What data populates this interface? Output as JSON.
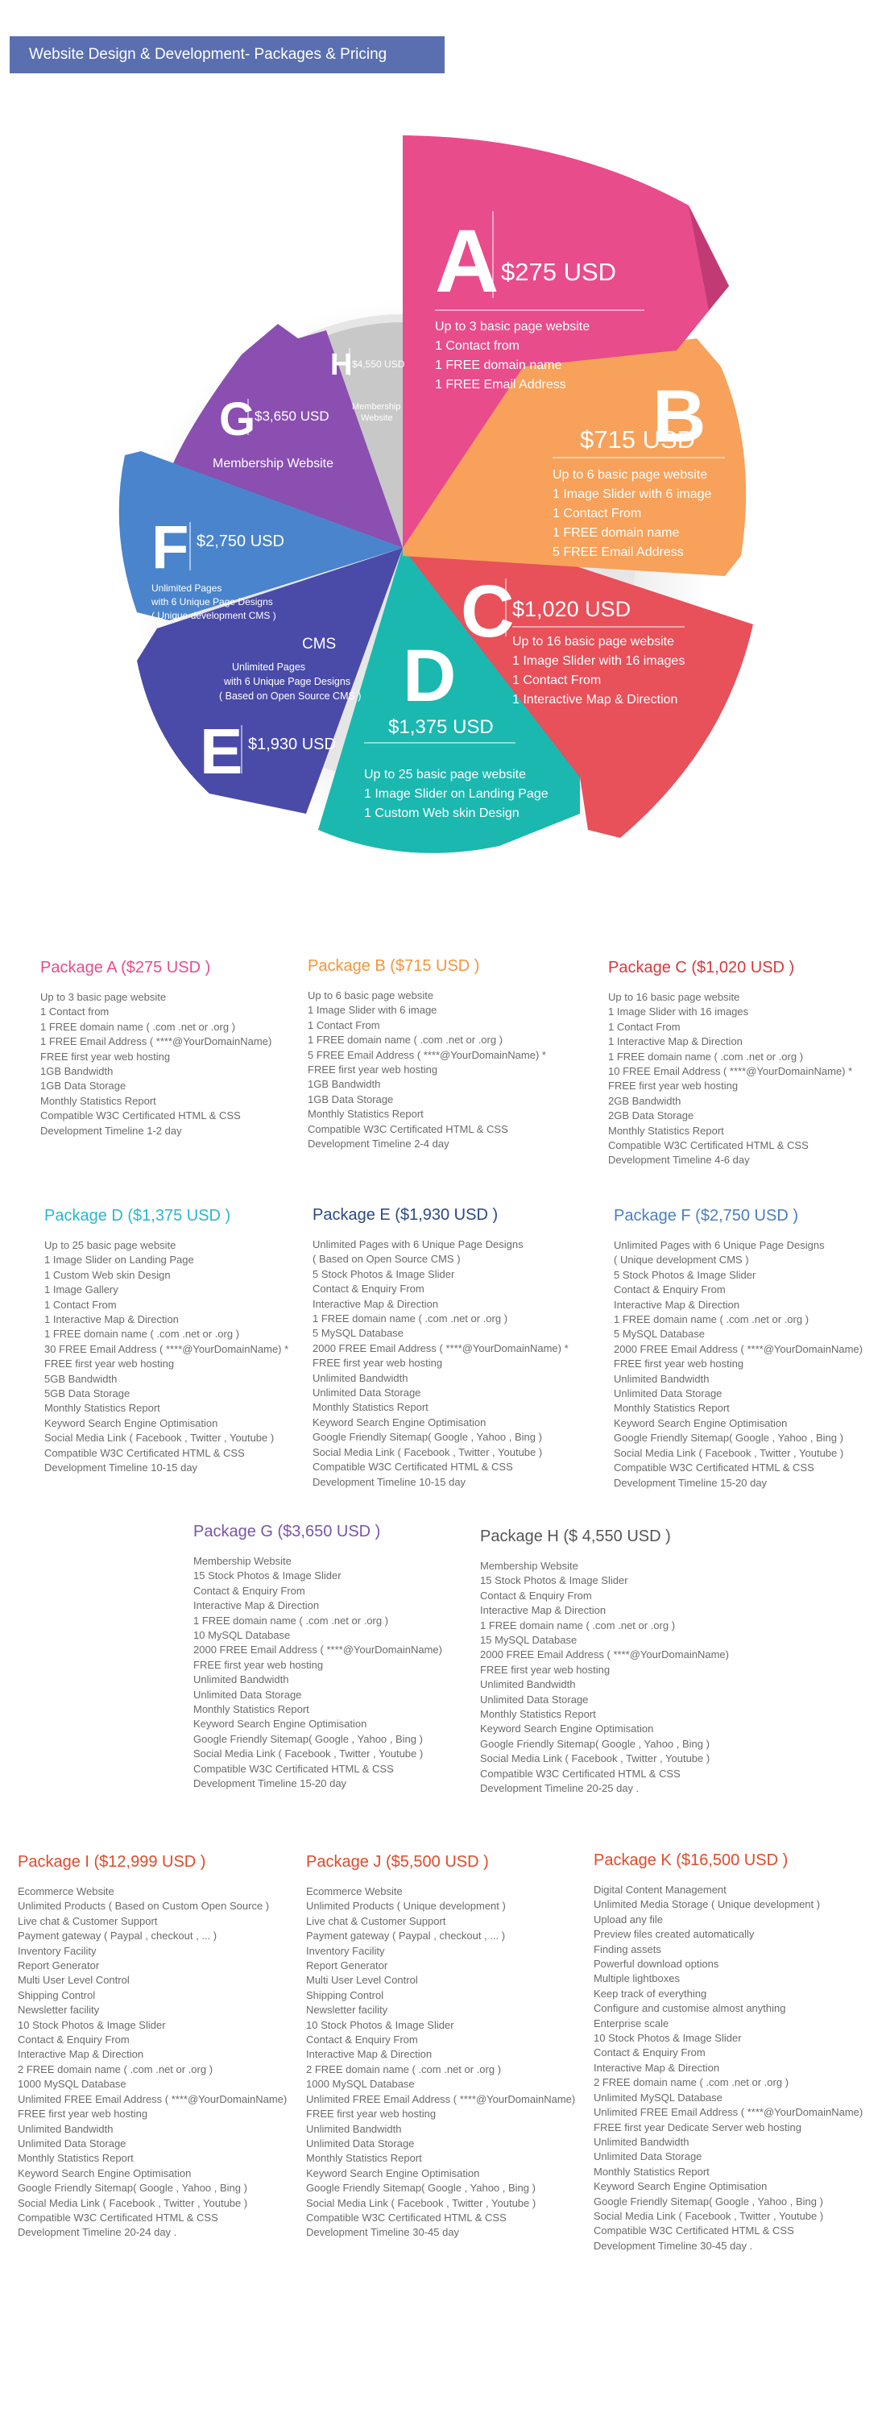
{
  "banner": {
    "title": "Website Design & Development- Packages & Pricing"
  },
  "wheel": {
    "A": {
      "letter": "A",
      "price": "$275 USD",
      "lines": [
        "Up to 3 basic page website",
        "1 Contact from",
        "1 FREE domain name",
        "1 FREE Email Address"
      ]
    },
    "B": {
      "letter": "B",
      "price": "$715 USD",
      "lines": [
        "Up to 6 basic page website",
        "1 Image Slider with 6 image",
        "1 Contact From",
        "1 FREE domain name",
        "5 FREE Email Address"
      ]
    },
    "C": {
      "letter": "C",
      "price": "$1,020 USD",
      "lines": [
        "Up to 16 basic page website",
        "1 Image Slider with 16 images",
        "1 Contact From",
        "1 Interactive Map & Direction"
      ]
    },
    "D": {
      "letter": "D",
      "price": "$1,375 USD",
      "lines": [
        "Up to 25 basic page website",
        "1 Image Slider on Landing Page",
        "1 Custom Web skin Design"
      ]
    },
    "E": {
      "letter": "E",
      "price": "$1,930 USD",
      "heading": "CMS",
      "lines": [
        "Unlimited Pages",
        "with 6 Unique Page Designs",
        "( Based on Open Source CMS )"
      ]
    },
    "F": {
      "letter": "F",
      "price": "$2,750 USD",
      "lines": [
        "Unlimited Pages",
        "with 6 Unique Page Designs",
        "( Unique development CMS )"
      ]
    },
    "G": {
      "letter": "G",
      "price": "$3,650 USD",
      "lines": [
        "Membership Website"
      ]
    },
    "H": {
      "letter": "H",
      "price": "$4,550 USD",
      "lines": [
        "Membership",
        "Website"
      ]
    }
  },
  "colors": {
    "A": "#e84c8b",
    "B": "#f7a15a",
    "C": "#e8505a",
    "D": "#1bb8b0",
    "E": "#4a4aa8",
    "F": "#4a84cc",
    "G": "#8a4fb0",
    "H": "#c8c8c8",
    "pkgA": "#e84c8b",
    "pkgB": "#f5953a",
    "pkgC": "#d9383a",
    "pkgD": "#29b6d2",
    "pkgE": "#2c4a86",
    "pkgF": "#4a7fc0",
    "pkgG": "#7a55a8",
    "pkgH": "#555555",
    "pkgI": "#e14a2a",
    "pkgJ": "#e14a2a",
    "pkgK": "#e14a2a"
  },
  "packages": {
    "A": {
      "title": "Package A ($275 USD )",
      "items": [
        "Up to 3 basic page website",
        "1 Contact from",
        "1 FREE domain name ( .com .net or .org )",
        "1 FREE Email Address ( ****@YourDomainName)",
        "FREE first year web hosting",
        "1GB Bandwidth",
        "1GB Data Storage",
        "Monthly Statistics Report",
        "Compatible W3C Certificated HTML & CSS",
        "Development Timeline 1-2 day"
      ]
    },
    "B": {
      "title": "Package B ($715 USD )",
      "items": [
        "Up to 6 basic page website",
        "1 Image Slider with 6 image",
        "1 Contact From",
        "1 FREE domain name ( .com .net or .org )",
        "5 FREE Email Address ( ****@YourDomainName) *",
        "FREE first year web hosting",
        "1GB Bandwidth",
        "1GB Data Storage",
        "Monthly Statistics Report",
        "Compatible W3C Certificated HTML & CSS",
        "Development Timeline 2-4 day"
      ]
    },
    "C": {
      "title": "Package C ($1,020 USD )",
      "items": [
        "Up to 16 basic page website",
        "1 Image Slider with 16 images",
        "1 Contact From",
        "1 Interactive Map & Direction",
        "1 FREE domain name ( .com .net or .org )",
        "10 FREE Email Address ( ****@YourDomainName) *",
        "FREE first year web hosting",
        "2GB Bandwidth",
        "2GB Data Storage",
        "Monthly Statistics Report",
        "Compatible W3C Certificated HTML & CSS",
        "Development Timeline 4-6 day"
      ]
    },
    "D": {
      "title": "Package D ($1,375 USD )",
      "items": [
        "Up to 25 basic page website",
        "1 Image Slider on Landing Page",
        "1 Custom Web skin Design",
        "1 Image Gallery",
        "1 Contact From",
        "1 Interactive Map & Direction",
        "1 FREE domain name ( .com .net or .org )",
        "30 FREE Email Address ( ****@YourDomainName) *",
        "FREE first year web hosting",
        "5GB Bandwidth",
        "5GB Data Storage",
        "Monthly Statistics Report",
        "Keyword Search Engine Optimisation",
        "Social Media Link ( Facebook , Twitter , Youtube )",
        "Compatible W3C Certificated HTML & CSS",
        "Development Timeline 10-15 day"
      ]
    },
    "E": {
      "title": "Package E ($1,930 USD )",
      "items": [
        "Unlimited Pages with 6 Unique Page Designs",
        "( Based on Open Source CMS )",
        "5 Stock Photos & Image Slider",
        "Contact & Enquiry From",
        "Interactive Map & Direction",
        "1 FREE domain name ( .com .net or .org )",
        "5 MySQL Database",
        "2000 FREE Email Address ( ****@YourDomainName) *",
        "FREE first year web hosting",
        "Unlimited Bandwidth",
        "Unlimited Data Storage",
        "Monthly Statistics Report",
        "Keyword Search Engine Optimisation",
        "Google Friendly Sitemap( Google , Yahoo , Bing )",
        "Social Media Link ( Facebook , Twitter , Youtube )",
        "Compatible W3C Certificated HTML & CSS",
        "Development Timeline 10-15 day"
      ]
    },
    "F": {
      "title": "Package F ($2,750 USD )",
      "items": [
        "Unlimited Pages with 6 Unique Page Designs",
        "( Unique development CMS )",
        "5 Stock Photos & Image Slider",
        "Contact & Enquiry From",
        "Interactive Map & Direction",
        "1 FREE domain name ( .com .net or .org )",
        "5 MySQL Database",
        "2000 FREE Email Address ( ****@YourDomainName)",
        "FREE first year web hosting",
        "Unlimited Bandwidth",
        "Unlimited Data Storage",
        "Monthly Statistics Report",
        "Keyword Search Engine Optimisation",
        "Google Friendly Sitemap( Google , Yahoo , Bing )",
        "Social Media Link ( Facebook , Twitter , Youtube )",
        "Compatible W3C Certificated HTML & CSS",
        "Development Timeline 15-20 day"
      ]
    },
    "G": {
      "title": "Package G ($3,650 USD )",
      "items": [
        "Membership Website",
        "15 Stock Photos & Image Slider",
        "Contact & Enquiry From",
        "Interactive Map & Direction",
        "1 FREE domain name ( .com .net or .org )",
        "10 MySQL Database",
        "2000 FREE Email Address ( ****@YourDomainName)",
        "FREE first year web hosting",
        "Unlimited Bandwidth",
        "Unlimited Data Storage",
        "Monthly Statistics Report",
        "Keyword Search Engine Optimisation",
        "Google Friendly Sitemap( Google , Yahoo , Bing )",
        "Social Media Link ( Facebook , Twitter , Youtube )",
        "Compatible W3C Certificated HTML & CSS",
        "Development Timeline 15-20 day"
      ]
    },
    "H": {
      "title": "Package H ($ 4,550 USD )",
      "items": [
        "Membership Website",
        "15 Stock Photos & Image Slider",
        "Contact & Enquiry From",
        "Interactive Map & Direction",
        "1 FREE domain name ( .com .net or .org )",
        "15 MySQL Database",
        "2000 FREE Email Address ( ****@YourDomainName)",
        "FREE first year web hosting",
        "Unlimited Bandwidth",
        "Unlimited Data Storage",
        "Monthly Statistics Report",
        "Keyword Search Engine Optimisation",
        "Google Friendly Sitemap( Google , Yahoo , Bing )",
        "Social Media Link ( Facebook , Twitter , Youtube )",
        "Compatible W3C Certificated HTML & CSS",
        "Development Timeline 20-25 day ."
      ]
    },
    "I": {
      "title": "Package I ($12,999 USD )",
      "items": [
        "Ecommerce Website",
        "Unlimited Products ( Based on Custom Open Source )",
        "Live chat & Customer Support",
        "Payment gateway ( Paypal , checkout , ... )",
        "Inventory Facility",
        "Report Generator",
        "Multi User Level Control",
        "Shipping Control",
        "Newsletter facility",
        "10 Stock Photos & Image Slider",
        "Contact & Enquiry From",
        "Interactive Map & Direction",
        "2 FREE domain name ( .com .net or .org )",
        "1000 MySQL Database",
        "Unlimited FREE Email Address ( ****@YourDomainName)",
        "FREE first year web hosting",
        "Unlimited Bandwidth",
        "Unlimited Data Storage",
        "Monthly Statistics Report",
        "Keyword Search Engine Optimisation",
        "Google Friendly Sitemap( Google , Yahoo , Bing )",
        "Social Media Link ( Facebook , Twitter , Youtube )",
        "Compatible W3C Certificated HTML & CSS",
        "Development Timeline 20-24 day ."
      ]
    },
    "J": {
      "title": "Package J ($5,500 USD )",
      "items": [
        "Ecommerce Website",
        "Unlimited Products ( Unique development )",
        "Live chat & Customer Support",
        "Payment gateway ( Paypal , checkout , ... )",
        "Inventory Facility",
        "Report Generator",
        "Multi User Level Control",
        "Shipping Control",
        "Newsletter facility",
        "10 Stock Photos & Image Slider",
        "Contact & Enquiry From",
        "Interactive Map & Direction",
        "2 FREE domain name ( .com .net or .org )",
        "1000 MySQL Database",
        "Unlimited FREE Email Address ( ****@YourDomainName)",
        "FREE first year web hosting",
        "Unlimited Bandwidth",
        "Unlimited Data Storage",
        "Monthly Statistics Report",
        "Keyword Search Engine Optimisation",
        "Google Friendly Sitemap( Google , Yahoo , Bing )",
        "Social Media Link ( Facebook , Twitter , Youtube )",
        "Compatible W3C Certificated HTML & CSS",
        "Development Timeline 30-45 day"
      ]
    },
    "K": {
      "title": "Package K ($16,500 USD )",
      "items": [
        "Digital Content Management",
        "Unlimited Media Storage ( Unique development )",
        "Upload any file",
        "Preview files created automatically",
        "Finding assets",
        "Powerful download options",
        "Multiple lightboxes",
        "Keep track of everything",
        "Configure and customise almost anything",
        "Enterprise scale",
        "10 Stock Photos & Image Slider",
        "Contact & Enquiry From",
        "Interactive Map & Direction",
        "2 FREE domain name ( .com .net or .org )",
        "Unlimited MySQL Database",
        "Unlimited FREE Email Address ( ****@YourDomainName)",
        "FREE first year Dedicate Server web hosting",
        "Unlimited Bandwidth",
        "Unlimited Data Storage",
        "Monthly Statistics Report",
        "Keyword Search Engine Optimisation",
        "Google Friendly Sitemap( Google , Yahoo , Bing )",
        "Social Media Link ( Facebook , Twitter , Youtube )",
        "Compatible W3C Certificated HTML & CSS",
        "Development Timeline 30-45 day ."
      ]
    }
  }
}
